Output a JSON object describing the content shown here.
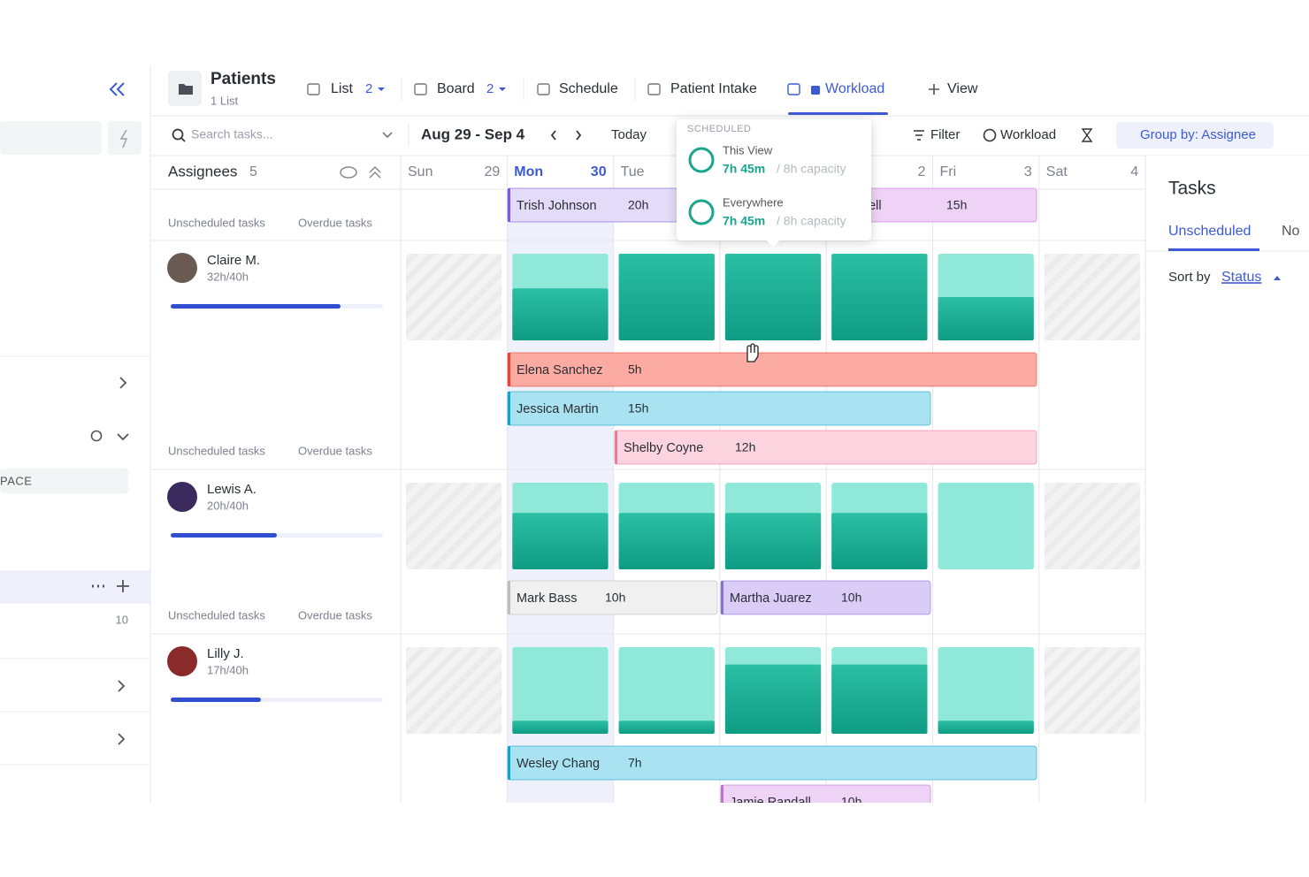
{
  "sidebar": {
    "label": "PACE",
    "count": "10"
  },
  "header": {
    "title": "Patients",
    "subtitle": "1 List",
    "tabs": [
      {
        "label": "List",
        "count": "2"
      },
      {
        "label": "Board",
        "count": "2"
      },
      {
        "label": "Schedule"
      },
      {
        "label": "Patient Intake"
      },
      {
        "label": "Workload"
      }
    ],
    "add_view": "View"
  },
  "toolbar": {
    "search": "Search tasks...",
    "date_range": "Aug 29 - Sep 4",
    "today": "Today",
    "filter": "Filter",
    "workload": "Workload",
    "group_by": "Group by: Assignee"
  },
  "grid": {
    "title": "Assignees",
    "count": "5",
    "days": [
      {
        "name": "Sun",
        "date": "29"
      },
      {
        "name": "Mon",
        "date": "30"
      },
      {
        "name": "Tue"
      },
      {},
      {
        "date": "2"
      },
      {
        "name": "Fri",
        "date": "3"
      },
      {
        "name": "Sat",
        "date": "4"
      }
    ]
  },
  "unassigned": {
    "labels": [
      "Unscheduled tasks",
      "Overdue tasks"
    ],
    "tasks": [
      {
        "name": "Trish Johnson",
        "hours": "20h",
        "color": "#e3dbf8",
        "border": "#7b5cd6"
      },
      {
        "name": "atell",
        "hours": "15h",
        "color": "#efd3f6",
        "border": "#c86ad8"
      }
    ]
  },
  "assignees": [
    {
      "name": "Claire M.",
      "hours": "32h/40h",
      "used": 32,
      "capacity": 40,
      "labels": [
        "Unscheduled tasks",
        "Overdue tasks"
      ],
      "load": [
        0.6,
        1,
        1,
        1,
        0.5
      ],
      "tasks": [
        {
          "name": "Elena Sanchez",
          "hours": "5h",
          "color": "#fcaba3",
          "border": "#e0463a"
        },
        {
          "name": "Jessica Martin",
          "hours": "15h",
          "color": "#a9e3f2",
          "border": "#1b9fcb"
        },
        {
          "name": "Shelby Coyne",
          "hours": "12h",
          "color": "#fbd4df",
          "border": "#f07898"
        }
      ]
    },
    {
      "name": "Lewis A.",
      "hours": "20h/40h",
      "used": 20,
      "capacity": 40,
      "labels": [
        "Unscheduled tasks",
        "Overdue tasks"
      ],
      "load": [
        0.65,
        0.65,
        0.65,
        0.65,
        0
      ],
      "tasks": [
        {
          "name": "Mark Bass",
          "hours": "10h",
          "color": "#f0f0f0",
          "border": "#bdbdbd"
        },
        {
          "name": "Martha Juarez",
          "hours": "10h",
          "color": "#d9ccf7",
          "border": "#8a6ee0"
        }
      ]
    },
    {
      "name": "Lilly J.",
      "hours": "17h/40h",
      "used": 17,
      "capacity": 40,
      "load": [
        0.15,
        0.15,
        0.8,
        0.8,
        0.15
      ],
      "tasks": [
        {
          "name": "Wesley Chang",
          "hours": "7h",
          "color": "#a9e3f2",
          "border": "#1b9fcb"
        },
        {
          "name": "Jamie Randall",
          "hours": "10h",
          "color": "#efd3f6",
          "border": "#c86ad8"
        }
      ]
    }
  ],
  "popup": {
    "heading": "SCHEDULED",
    "items": [
      {
        "label": "This View",
        "value": "7h 45m",
        "capacity": "/ 8h capacity"
      },
      {
        "label": "Everywhere",
        "value": "7h 45m",
        "capacity": "/ 8h capacity"
      }
    ]
  },
  "tasks_panel": {
    "title": "Tasks",
    "tabs": [
      "Unscheduled",
      "No"
    ],
    "sort_label": "Sort by",
    "sort_value": "Status"
  }
}
